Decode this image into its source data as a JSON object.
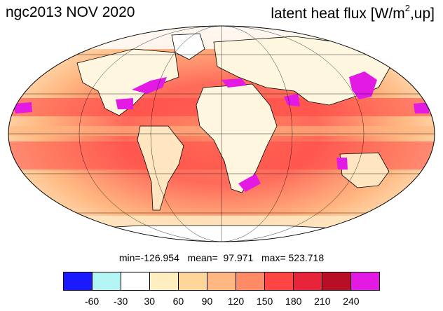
{
  "title": {
    "left": "ngc2013 NOV 2020",
    "right_main": "latent heat flux [W/m",
    "right_sup": "2",
    "right_tail": ",up]"
  },
  "stats": {
    "text": "min=-126.954   mean=  97.971   max= 523.718"
  },
  "colorbar": {
    "colors": [
      "#1a1aff",
      "#b3f5f5",
      "#ffffff",
      "#ffeec0",
      "#ffd69a",
      "#ffb882",
      "#ff8a66",
      "#ff4444",
      "#e8243a",
      "#b80f26",
      "#e31ae3"
    ],
    "labels": [
      "-60",
      "-30",
      "30",
      "60",
      "90",
      "120",
      "150",
      "180",
      "210",
      "240"
    ]
  }
}
